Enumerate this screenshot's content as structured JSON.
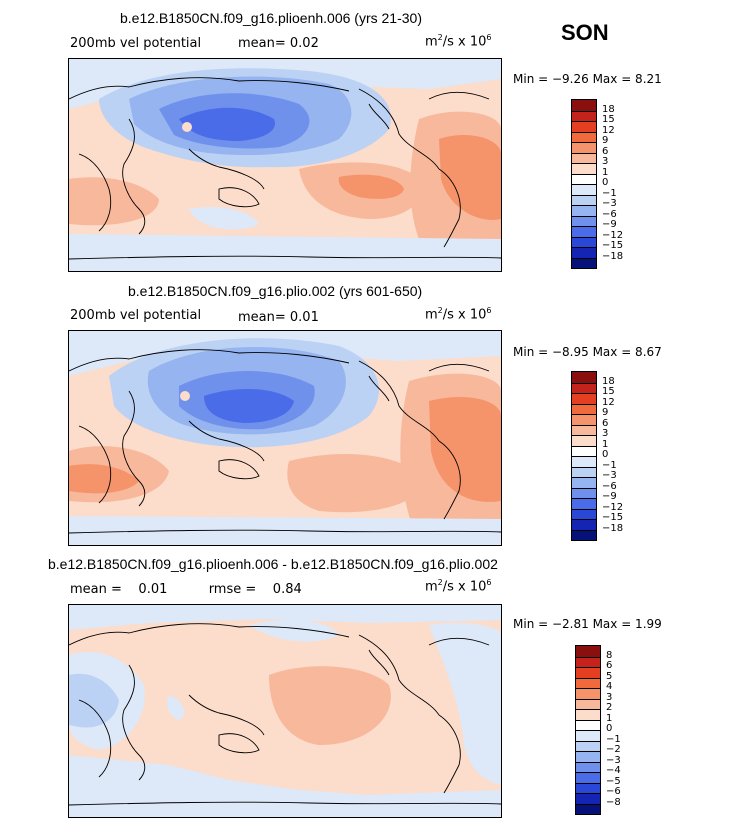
{
  "season": "SON",
  "panels": [
    {
      "title": "b.e12.B1850CN.f09_g16.plioenh.006 (yrs 21-30)",
      "variable": "200mb vel potential",
      "stats": "mean=   0.02",
      "units_base": "m",
      "units_mid": "/s x 10",
      "units_exp1": "2",
      "units_exp2": "6",
      "minmax": "Min =  −9.26  Max =   8.21",
      "levels": [
        "18",
        "15",
        "12",
        "9",
        "6",
        "3",
        "1",
        "0",
        "−1",
        "−3",
        "−6",
        "−9",
        "−12",
        "−15",
        "−18"
      ],
      "colors": [
        "#8a0f0f",
        "#c4221b",
        "#e43f20",
        "#f06a3c",
        "#f5946a",
        "#f8b89c",
        "#fcdccb",
        "#ffffff",
        "#dde9f8",
        "#bcd2f4",
        "#95b4f0",
        "#6f91ec",
        "#4a6ce8",
        "#2a48d8",
        "#1425b4",
        "#061279"
      ]
    },
    {
      "title": "b.e12.B1850CN.f09_g16.plio.002 (yrs 601-650)",
      "variable": "200mb vel potential",
      "stats": "mean=   0.01",
      "units_base": "m",
      "units_mid": "/s x 10",
      "units_exp1": "2",
      "units_exp2": "6",
      "minmax": "Min =  −8.95  Max =   8.67",
      "levels": [
        "18",
        "15",
        "12",
        "9",
        "6",
        "3",
        "1",
        "0",
        "−1",
        "−3",
        "−6",
        "−9",
        "−12",
        "−15",
        "−18"
      ],
      "colors": [
        "#8a0f0f",
        "#c4221b",
        "#e43f20",
        "#f06a3c",
        "#f5946a",
        "#f8b89c",
        "#fcdccb",
        "#ffffff",
        "#dde9f8",
        "#bcd2f4",
        "#95b4f0",
        "#6f91ec",
        "#4a6ce8",
        "#2a48d8",
        "#1425b4",
        "#061279"
      ]
    },
    {
      "title": "b.e12.B1850CN.f09_g16.plioenh.006 - b.e12.B1850CN.f09_g16.plio.002",
      "variable": "",
      "stats": "mean =    0.01          rmse =    0.84",
      "units_base": "m",
      "units_mid": "/s x 10",
      "units_exp1": "2",
      "units_exp2": "6",
      "minmax": "Min =  −2.81  Max =    1.99",
      "levels": [
        "8",
        "6",
        "5",
        "4",
        "3",
        "2",
        "1",
        "0",
        "−1",
        "−2",
        "−3",
        "−4",
        "−5",
        "−6",
        "−8"
      ],
      "colors": [
        "#8a0f0f",
        "#c4221b",
        "#e43f20",
        "#f06a3c",
        "#f5946a",
        "#f8b89c",
        "#fcdccb",
        "#ffffff",
        "#dde9f8",
        "#bcd2f4",
        "#95b4f0",
        "#6f91ec",
        "#4a6ce8",
        "#2a48d8",
        "#1425b4",
        "#061279"
      ]
    }
  ]
}
